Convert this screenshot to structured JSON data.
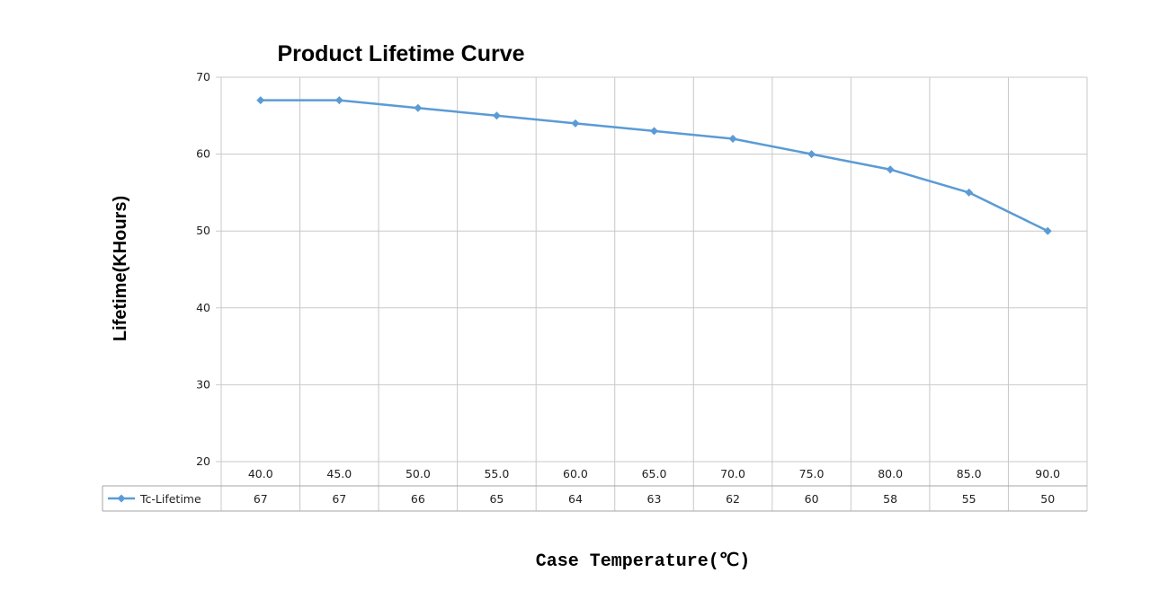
{
  "chart_data": {
    "type": "line",
    "title": "Product Lifetime Curve",
    "xlabel": "Case Temperature(℃)",
    "ylabel": "Lifetime(KHours)",
    "categories": [
      "40.0",
      "45.0",
      "50.0",
      "55.0",
      "60.0",
      "65.0",
      "70.0",
      "75.0",
      "80.0",
      "85.0",
      "90.0"
    ],
    "series": [
      {
        "name": "Tc-Lifetime",
        "values": [
          67,
          67,
          66,
          65,
          64,
          63,
          62,
          60,
          58,
          55,
          50
        ],
        "color": "#5b9bd5",
        "marker": "diamond"
      }
    ],
    "ylim": [
      20,
      70
    ],
    "yticks": [
      20,
      30,
      40,
      50,
      60,
      70
    ],
    "grid": true,
    "legend": "data-table-bottom-left",
    "data_table": true
  }
}
